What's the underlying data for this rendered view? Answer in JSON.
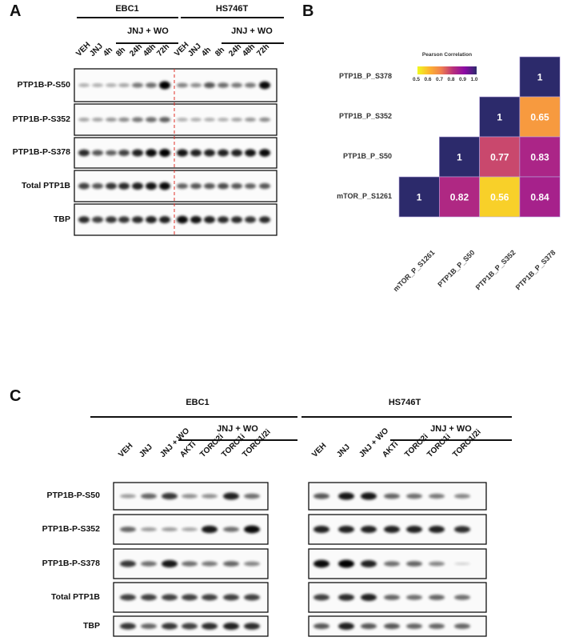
{
  "panel_a": {
    "label": "A",
    "groups": [
      "EBC1",
      "HS746T"
    ],
    "treatment_label": "JNJ + WO",
    "lanes": [
      "VEH",
      "JNJ",
      "4h",
      "8h",
      "24h",
      "48h",
      "72h",
      "VEH",
      "JNJ",
      "4h",
      "8h",
      "24h",
      "48h",
      "72h"
    ],
    "rows": [
      "PTP1B-P-S50",
      "PTP1B-P-S352",
      "PTP1B-P-S378",
      "Total PTP1B",
      "TBP"
    ],
    "divider_color": "#e0302a"
  },
  "panel_b": {
    "label": "B",
    "legend_title": "Pearson Correlation",
    "legend_ticks": [
      "0.5",
      "0.6",
      "0.7",
      "0.8",
      "0.9",
      "1.0"
    ],
    "chart_data": {
      "type": "heatmap",
      "rows": [
        "PTP1B_P_S378",
        "PTP1B_P_S352",
        "PTP1B_P_S50",
        "mTOR_P_S1261"
      ],
      "columns": [
        "mTOR_P_S1261",
        "PTP1B_P_S50",
        "PTP1B_P_S352",
        "PTP1B_P_S378"
      ],
      "values": [
        [
          null,
          null,
          null,
          1
        ],
        [
          null,
          null,
          1,
          0.65
        ],
        [
          null,
          1,
          0.77,
          0.83
        ],
        [
          1,
          0.82,
          0.56,
          0.84
        ]
      ],
      "labels": [
        [
          null,
          null,
          null,
          "1"
        ],
        [
          null,
          null,
          "1",
          "0.65"
        ],
        [
          null,
          "1",
          "0.77",
          "0.83"
        ],
        [
          "1",
          "0.82",
          "0.56",
          "0.84"
        ]
      ],
      "color_range": [
        0.5,
        1.0
      ],
      "colorscale": [
        "#f0f921",
        "#fdb42f",
        "#f07f4f",
        "#b8307a",
        "#8b0aa5",
        "#2c2a6b"
      ]
    }
  },
  "panel_c": {
    "label": "C",
    "groups": [
      "EBC1",
      "HS746T"
    ],
    "treatment_label": "JNJ + WO",
    "lanes": [
      "VEH",
      "JNJ",
      "JNJ + WO",
      "AKTi",
      "TORC2i",
      "TORC1i",
      "TORC1/2i"
    ],
    "rows": [
      "PTP1B-P-S50",
      "PTP1B-P-S352",
      "PTP1B-P-S378",
      "Total PTP1B",
      "TBP"
    ]
  }
}
